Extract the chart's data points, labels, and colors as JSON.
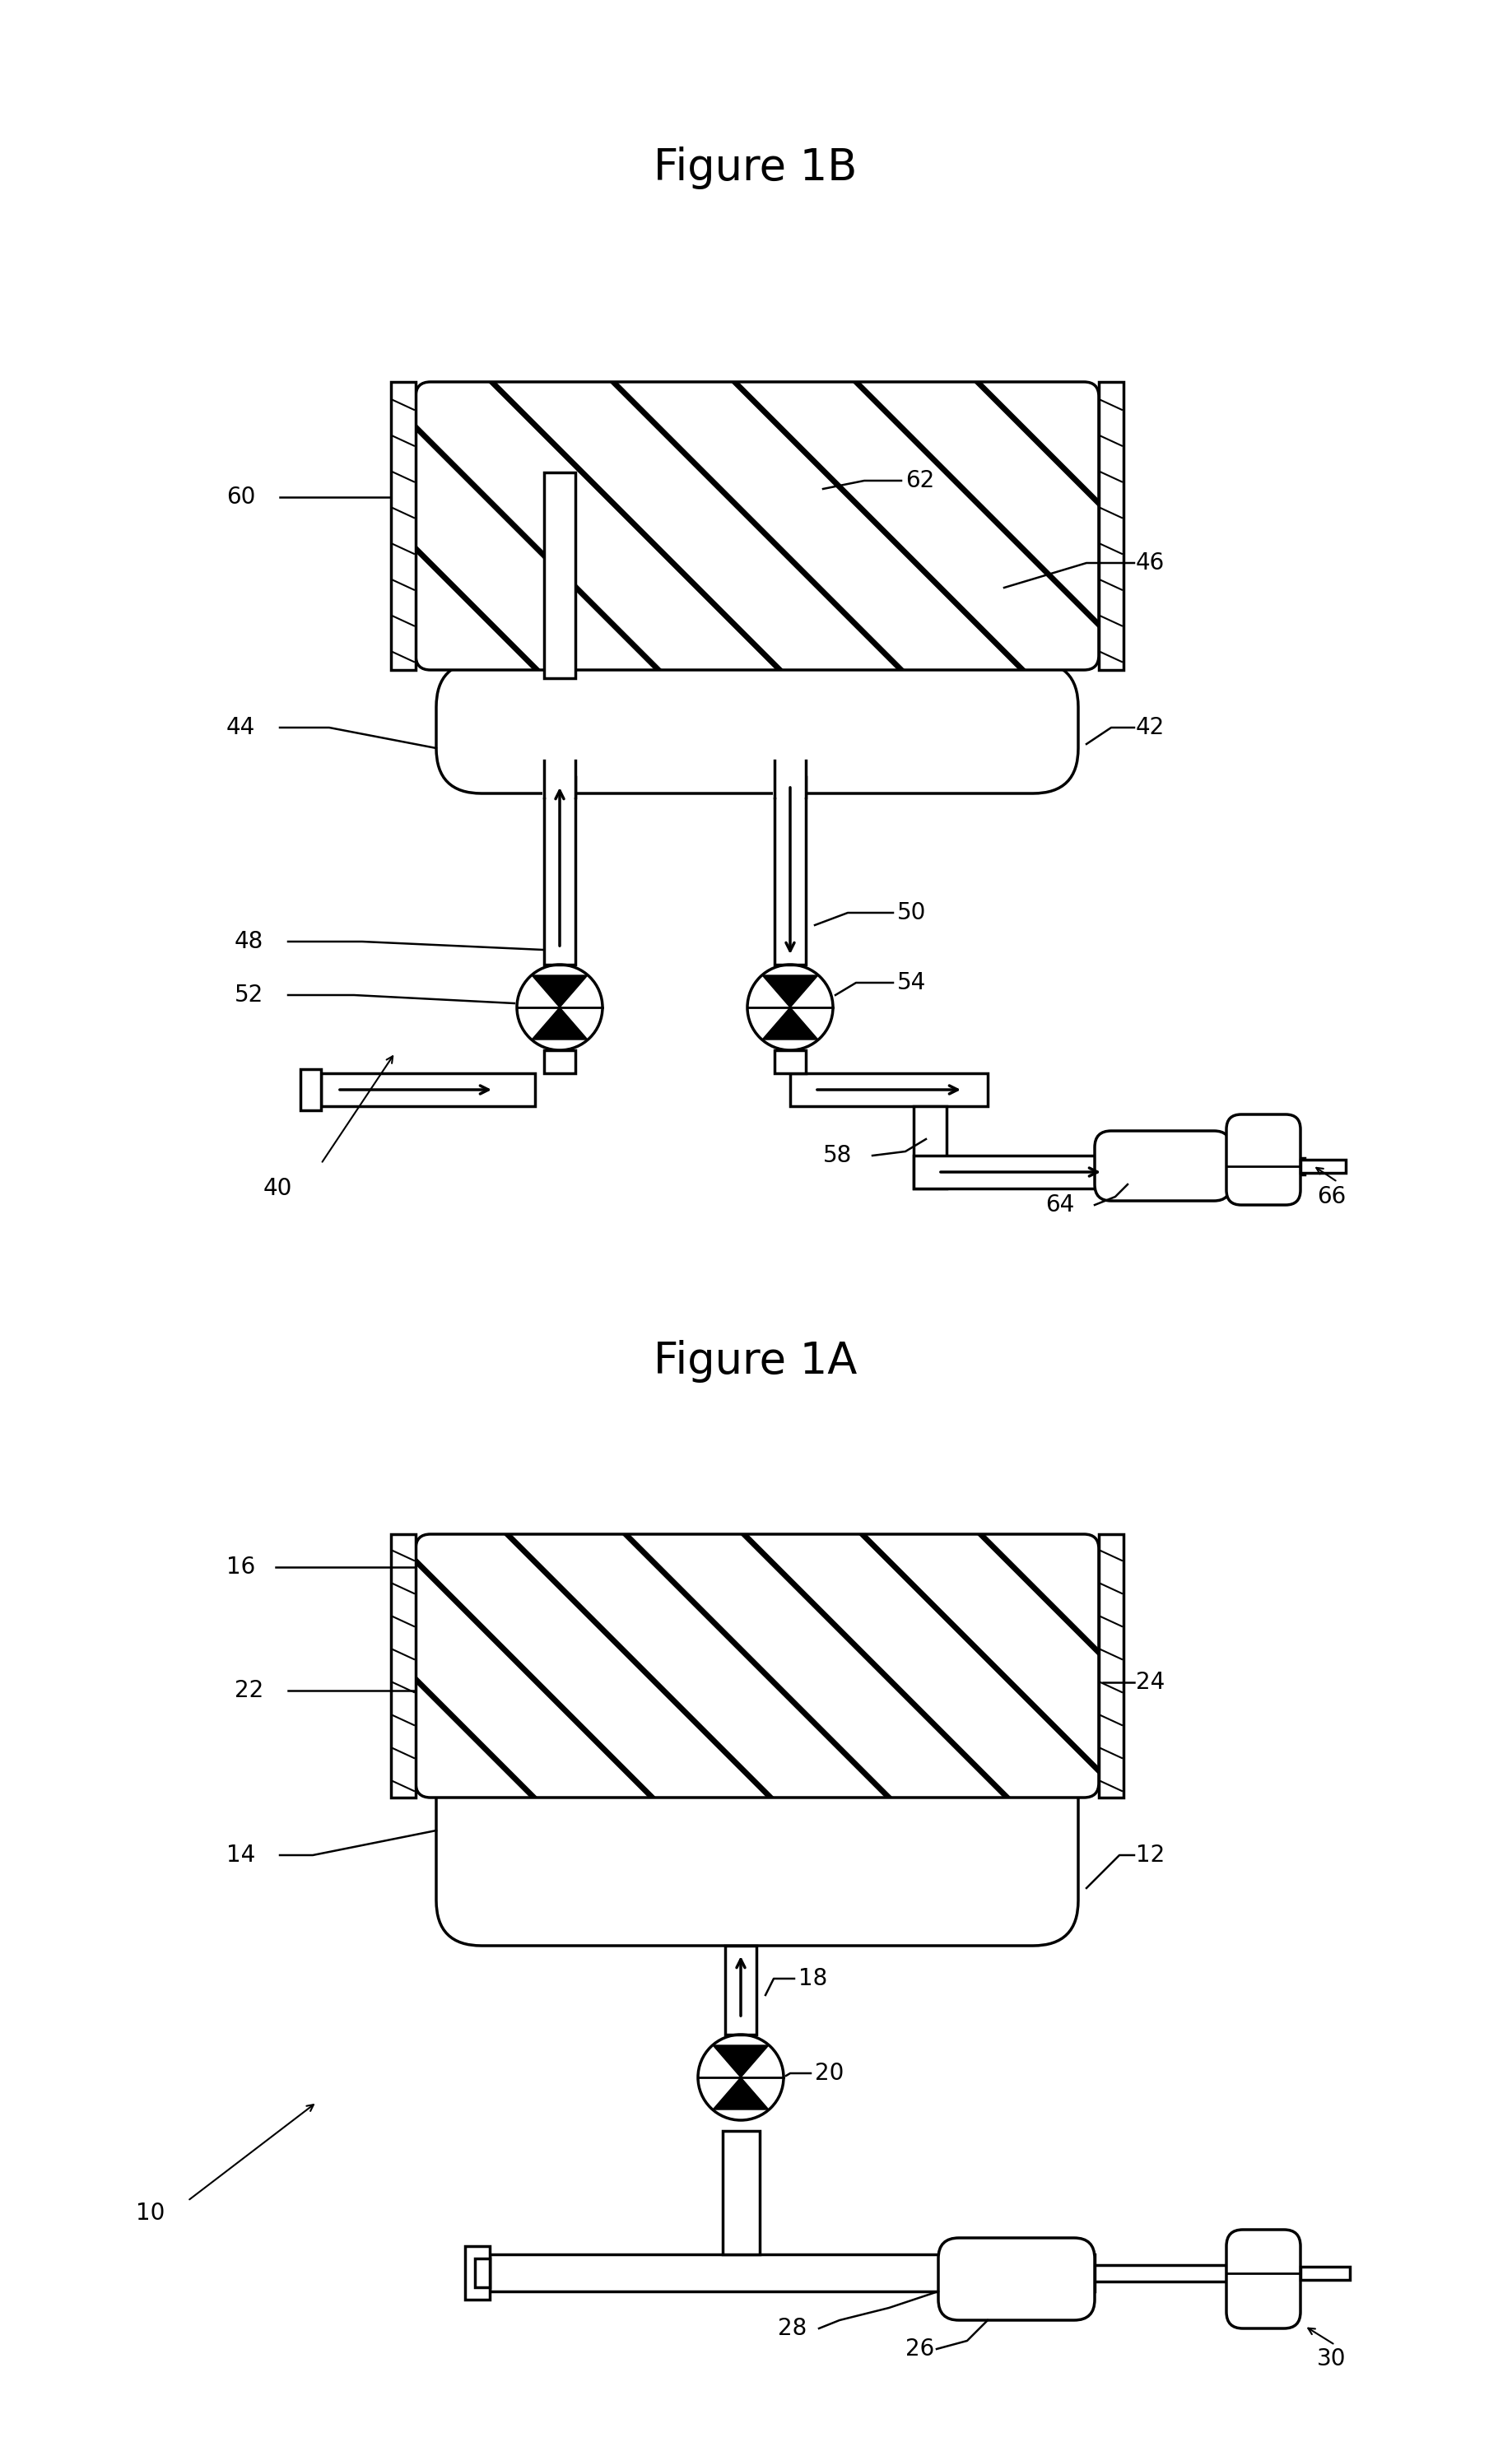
{
  "fig_width": 18.37,
  "fig_height": 29.84,
  "bg_color": "#ffffff",
  "line_color": "#000000",
  "label_fontsize": 20,
  "figure_label_fontsize": 38,
  "figure_1A_label": "Figure 1A",
  "figure_1B_label": "Figure 1B"
}
